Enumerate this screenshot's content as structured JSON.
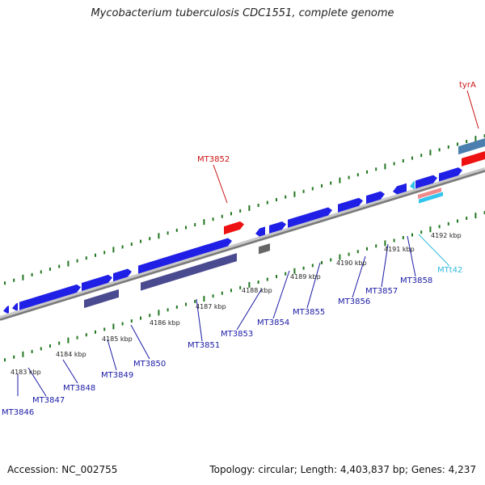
{
  "title": "Mycobacterium tuberculosis CDC1551, complete genome",
  "footer": {
    "accession": "Accession: NC_002755",
    "topology": "Topology: circular; Length: 4,403,837 bp; Genes: 4,237"
  },
  "colors": {
    "label_blue": "#1a1aa6",
    "label_red": "#cc1111",
    "label_cyan": "#33bbdd",
    "gene_blue": "#1f1fe6",
    "gene_slate": "#4a4a90",
    "gene_red": "#ee1111",
    "gene_grey": "#666666",
    "gene_steel": "#4a7fb0",
    "gene_pink": "#f08a8a",
    "gene_cyan": "#33c4ee",
    "tick_green": "#227722",
    "backbone": "#8a8a8a"
  },
  "scale_ticks": [
    {
      "label": "4183 kbp"
    },
    {
      "label": "4184 kbp"
    },
    {
      "label": "4185 kbp"
    },
    {
      "label": "4186 kbp"
    },
    {
      "label": "4187 kbp"
    },
    {
      "label": "4188 kbp"
    },
    {
      "label": "4189 kbp"
    },
    {
      "label": "4190 kbp"
    },
    {
      "label": "4191 kbp"
    },
    {
      "label": "4192 kbp"
    }
  ],
  "gene_labels": [
    {
      "name": "MT3846",
      "color": "blue"
    },
    {
      "name": "MT3847",
      "color": "blue"
    },
    {
      "name": "MT3848",
      "color": "blue"
    },
    {
      "name": "MT3849",
      "color": "blue"
    },
    {
      "name": "MT3850",
      "color": "blue"
    },
    {
      "name": "MT3851",
      "color": "blue"
    },
    {
      "name": "MT3853",
      "color": "blue"
    },
    {
      "name": "MT3854",
      "color": "blue"
    },
    {
      "name": "MT3855",
      "color": "blue"
    },
    {
      "name": "MT3856",
      "color": "blue"
    },
    {
      "name": "MT3857",
      "color": "blue"
    },
    {
      "name": "MT3858",
      "color": "blue"
    },
    {
      "name": "MTt42",
      "color": "cyan"
    },
    {
      "name": "MT3852",
      "color": "red"
    },
    {
      "name": "tyrA",
      "color": "red"
    }
  ]
}
